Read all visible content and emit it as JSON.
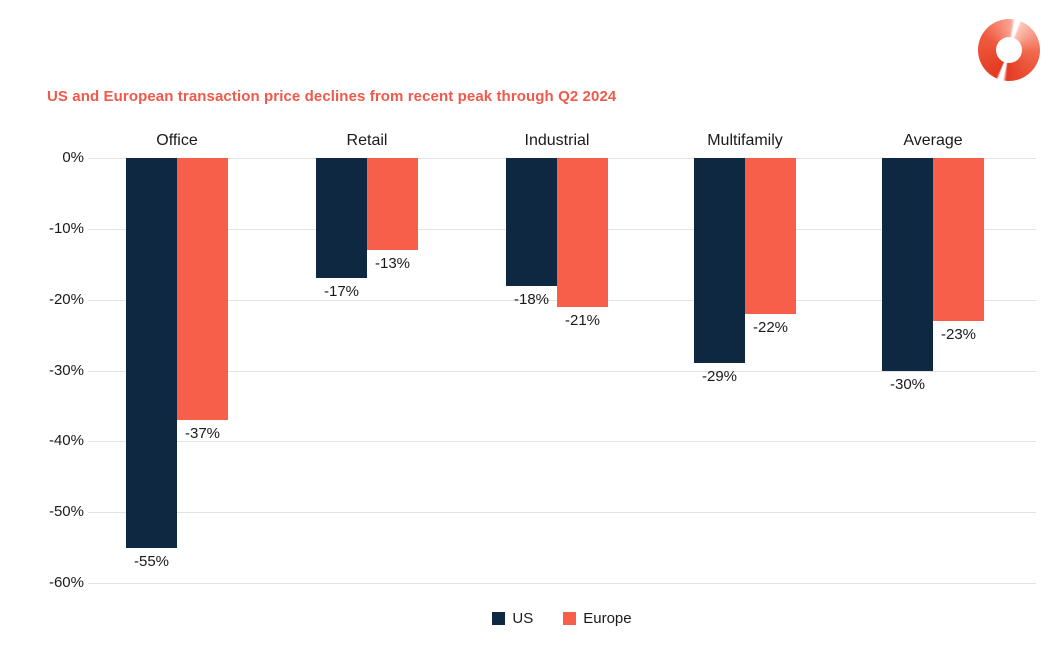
{
  "header": {
    "logo_icon": "brand-donut-logo",
    "logo_color": "#E8462C"
  },
  "colors": {
    "us_series": "#0E2841",
    "europe_series": "#F85F4A",
    "title": "#F0594B",
    "gridline": "#E3E3E3",
    "text": "#1A1A1A",
    "background": "#FFFFFF"
  },
  "chart_data": {
    "type": "bar",
    "title": "US and European transaction price declines from recent peak through Q2 2024",
    "categories": [
      "Office",
      "Retail",
      "Industrial",
      "Multifamily",
      "Average"
    ],
    "series": [
      {
        "name": "US",
        "color": "#0E2841",
        "values": [
          -55,
          -17,
          -18,
          -29,
          -30
        ]
      },
      {
        "name": "Europe",
        "color": "#F85F4A",
        "values": [
          -37,
          -13,
          -21,
          -22,
          -23
        ]
      }
    ],
    "value_labels": [
      [
        "-55%",
        "-17%",
        "-18%",
        "-29%",
        "-30%"
      ],
      [
        "-37%",
        "-13%",
        "-21%",
        "-22%",
        "-23%"
      ]
    ],
    "yticks": [
      "0%",
      "-10%",
      "-20%",
      "-30%",
      "-40%",
      "-50%",
      "-60%"
    ],
    "ylim": [
      -60,
      0
    ],
    "xlabel": "",
    "ylabel": "",
    "grid": true,
    "legend_position": "bottom",
    "bar_orientation": "vertical-negative"
  },
  "legend": {
    "items": [
      {
        "label": "US",
        "color": "#0E2841"
      },
      {
        "label": "Europe",
        "color": "#F85F4A"
      }
    ]
  }
}
